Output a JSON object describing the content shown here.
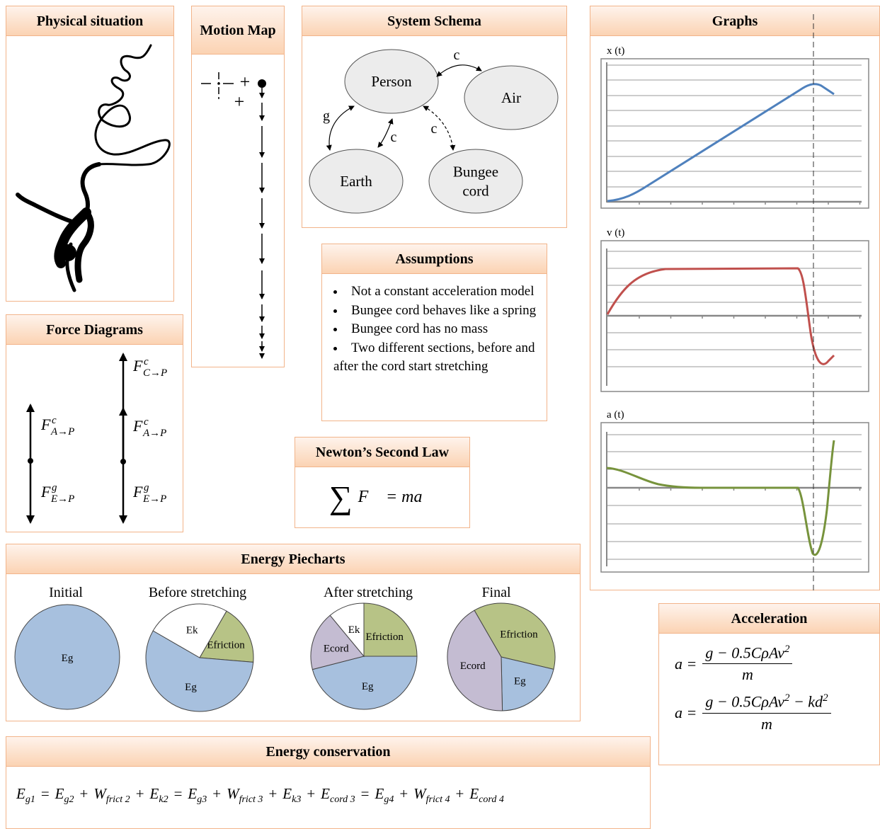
{
  "physical_situation": {
    "title": "Physical situation"
  },
  "motion_map": {
    "title": "Motion Map",
    "signs": [
      "+",
      "+"
    ]
  },
  "system_schema": {
    "title": "System Schema",
    "nodes": [
      {
        "lines": [
          "Person"
        ]
      },
      {
        "lines": [
          "Air"
        ]
      },
      {
        "lines": [
          "Earth"
        ]
      },
      {
        "lines": [
          "Bungee",
          "cord"
        ]
      }
    ],
    "edges": [
      {
        "label": "c"
      },
      {
        "label": "g"
      },
      {
        "label": "c"
      },
      {
        "label": "c"
      }
    ]
  },
  "graphs": {
    "title": "Graphs",
    "plots": [
      {
        "label": "x (t)"
      },
      {
        "label": "v (t)"
      },
      {
        "label": "a (t)"
      }
    ]
  },
  "force_diagrams": {
    "title": "Force Diagrams",
    "diagrams": [
      {
        "forces": [
          {
            "symbol": "F",
            "sup": "c",
            "sub": "A→P"
          },
          {
            "symbol": "F",
            "sup": "g",
            "sub": "E→P"
          }
        ]
      },
      {
        "forces": [
          {
            "symbol": "F",
            "sup": "c",
            "sub": "C→P"
          },
          {
            "symbol": "F",
            "sup": "c",
            "sub": "A→P"
          },
          {
            "symbol": "F",
            "sup": "g",
            "sub": "E→P"
          }
        ]
      }
    ]
  },
  "assumptions": {
    "title": "Assumptions",
    "items": [
      "Not a constant acceleration model",
      "Bungee cord behaves like a spring",
      "Bungee cord has no mass",
      "Two different sections, before and after the cord start stretching"
    ]
  },
  "newtons_second_law": {
    "title": "Newton’s Second Law",
    "sum": "∑",
    "equation": "F⃗ = ma⃗"
  },
  "energy_piecharts": {
    "title": "Energy Piecharts",
    "charts": [
      {
        "title": "Initial",
        "slices": [
          {
            "label": "Eg",
            "value": 100,
            "color": "#a7c0de"
          }
        ]
      },
      {
        "title": "Before stretching",
        "slices": [
          {
            "label": "Efriction",
            "value": 18,
            "color": "#b7c386"
          },
          {
            "label": "Eg",
            "value": 57,
            "color": "#a7c0de"
          },
          {
            "label": "Ek",
            "value": 25,
            "color": "#ffffff"
          }
        ]
      },
      {
        "title": "After stretching",
        "slices": [
          {
            "label": "Efriction",
            "value": 25,
            "color": "#b7c386"
          },
          {
            "label": "Eg",
            "value": 46,
            "color": "#a7c0de"
          },
          {
            "label": "Ecord",
            "value": 18,
            "color": "#c4bcd2"
          },
          {
            "label": "Ek",
            "value": 11,
            "color": "#ffffff"
          }
        ]
      },
      {
        "title": "Final",
        "slices": [
          {
            "label": "Efriction",
            "value": 37,
            "color": "#b7c386"
          },
          {
            "label": "Eg",
            "value": 21,
            "color": "#a7c0de"
          },
          {
            "label": "Ecord",
            "value": 42,
            "color": "#c4bcd2"
          }
        ]
      }
    ]
  },
  "acceleration": {
    "title": "Acceleration",
    "formulas": [
      {
        "lhs": "a =",
        "numerator": [
          {
            "text": "g − 0.5CρAv",
            "sup": "2"
          }
        ],
        "denominator": "m"
      },
      {
        "lhs": "a =",
        "numerator": [
          {
            "text": "g − 0.5CρAv",
            "sup": "2"
          },
          {
            "text": " − kd",
            "sup": "2"
          }
        ],
        "denominator": "m"
      }
    ]
  },
  "energy_conservation": {
    "title": "Energy conservation",
    "equation": [
      {
        "symbol": "E",
        "sub": "g1"
      },
      "=",
      {
        "symbol": "E",
        "sub": "g2"
      },
      "+",
      {
        "symbol": "W",
        "sub": "frict 2"
      },
      "+",
      {
        "symbol": "E",
        "sub": "k2"
      },
      "=",
      {
        "symbol": "E",
        "sub": "g3"
      },
      "+",
      {
        "symbol": "W",
        "sub": "frict 3"
      },
      "+",
      {
        "symbol": "E",
        "sub": "k3"
      },
      "+",
      {
        "symbol": "E",
        "sub": "cord 3"
      },
      "=",
      {
        "symbol": "E",
        "sub": "g4"
      },
      "+",
      {
        "symbol": "W",
        "sub": "frict 4"
      },
      "+",
      {
        "symbol": "E",
        "sub": "cord 4"
      }
    ]
  }
}
